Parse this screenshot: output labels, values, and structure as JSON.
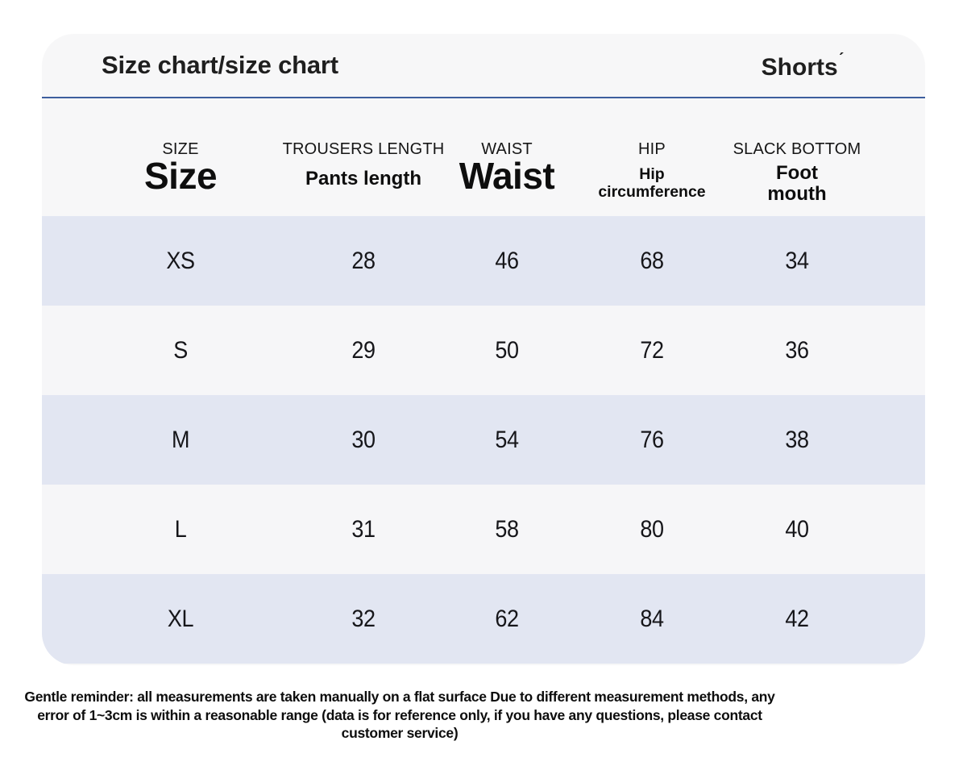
{
  "header": {
    "title": "Size chart/size chart",
    "product_label": "Shorts",
    "product_mark": "ˊ"
  },
  "chart_data": {
    "type": "table",
    "title": "Size chart/size chart",
    "product": "Shorts",
    "columns": [
      {
        "en_caps": "SIZE",
        "label": "Size"
      },
      {
        "en_caps": "TROUSERS LENGTH",
        "label": "Pants length"
      },
      {
        "en_caps": "WAIST",
        "label": "Waist"
      },
      {
        "en_caps": "HIP",
        "label": "Hip circumference"
      },
      {
        "en_caps": "SLACK BOTTOM",
        "label": "Foot mouth"
      }
    ],
    "rows": [
      {
        "size": "XS",
        "trousers_length": "28",
        "waist": "46",
        "hip": "68",
        "slack_bottom": "34"
      },
      {
        "size": "S",
        "trousers_length": "29",
        "waist": "50",
        "hip": "72",
        "slack_bottom": "36"
      },
      {
        "size": "M",
        "trousers_length": "30",
        "waist": "54",
        "hip": "76",
        "slack_bottom": "38"
      },
      {
        "size": "L",
        "trousers_length": "31",
        "waist": "58",
        "hip": "80",
        "slack_bottom": "40"
      },
      {
        "size": "XL",
        "trousers_length": "32",
        "waist": "62",
        "hip": "84",
        "slack_bottom": "42"
      }
    ],
    "note": "Gentle reminder: all measurements are taken manually on a flat surface Due to different measurement methods, any error of 1~3cm is within a reasonable range (data is for reference only, if you have any questions, please contact customer service)"
  },
  "colors": {
    "accent_line": "#3e5e9e",
    "row_highlight": "#e2e6f2",
    "row_base": "#f6f6f8",
    "card_bg": "#f7f7f8",
    "page_bg": "#ffffff",
    "text": "#1a1a1a"
  }
}
